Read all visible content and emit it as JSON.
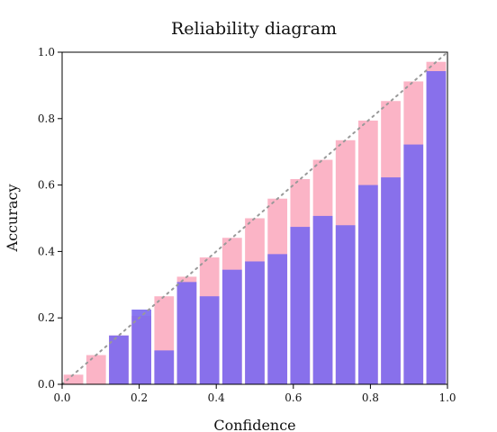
{
  "chart_data": {
    "type": "bar",
    "title": "Reliability diagram",
    "xlabel": "Confidence",
    "ylabel": "Accuracy",
    "xlim": [
      0.0,
      1.0
    ],
    "ylim": [
      0.0,
      1.0
    ],
    "xticks": [
      "0.0",
      "0.2",
      "0.4",
      "0.6",
      "0.8",
      "1.0"
    ],
    "yticks": [
      "0.0",
      "0.2",
      "0.4",
      "0.6",
      "0.8",
      "1.0"
    ],
    "bin_width": 0.0588,
    "bin_centers": [
      0.0294,
      0.0882,
      0.1471,
      0.2059,
      0.2647,
      0.3235,
      0.3824,
      0.4412,
      0.5,
      0.5588,
      0.6176,
      0.6765,
      0.7353,
      0.7941,
      0.8529,
      0.9118,
      0.9706
    ],
    "series": [
      {
        "role": "expected",
        "values": [
          0.029,
          0.088,
          0.147,
          0.206,
          0.265,
          0.324,
          0.382,
          0.441,
          0.5,
          0.559,
          0.618,
          0.676,
          0.735,
          0.794,
          0.853,
          0.912,
          0.971
        ],
        "color": "#fbb4c6"
      },
      {
        "role": "accuracy",
        "values": [
          0.0,
          0.0,
          0.147,
          0.225,
          0.102,
          0.308,
          0.265,
          0.345,
          0.37,
          0.392,
          0.474,
          0.507,
          0.479,
          0.6,
          0.623,
          0.722,
          0.943
        ],
        "color": "#7b68ee"
      }
    ],
    "diagonal": {
      "from": [
        0,
        0
      ],
      "to": [
        1,
        1
      ],
      "style": "dotted",
      "color": "#999999"
    },
    "grid": false,
    "legend": false
  }
}
